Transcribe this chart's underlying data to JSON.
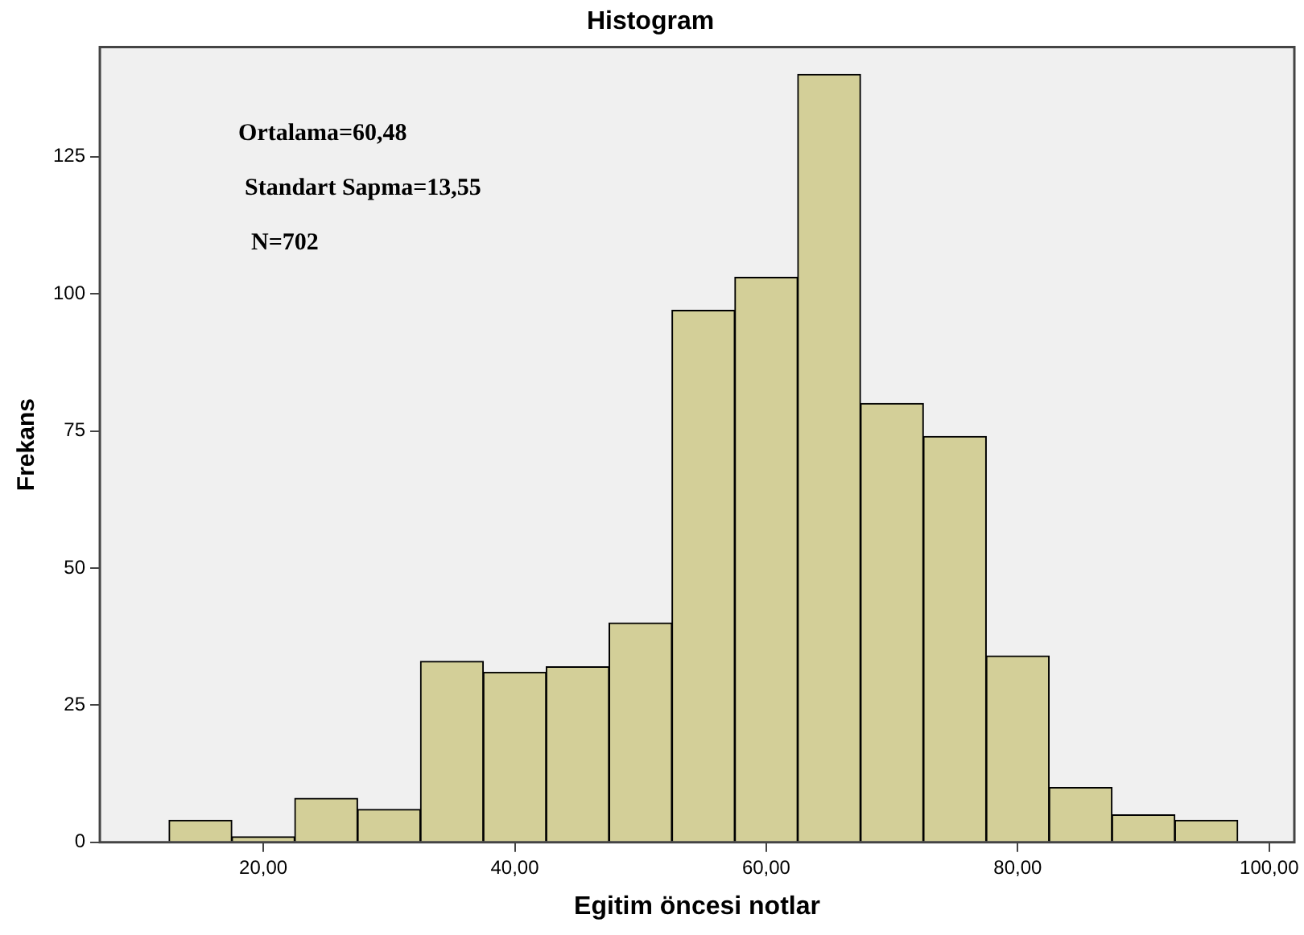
{
  "chart_data": {
    "type": "histogram",
    "title": "Histogram",
    "xlabel": "Egitim öncesi notlar",
    "ylabel": "Frekans",
    "bins": [
      12.5,
      17.5,
      22.5,
      27.5,
      32.5,
      37.5,
      42.5,
      47.5,
      52.5,
      57.5,
      62.5,
      67.5,
      72.5,
      77.5,
      82.5,
      87.5,
      92.5,
      97.5
    ],
    "values": [
      4,
      1,
      8,
      6,
      33,
      31,
      32,
      40,
      97,
      103,
      140,
      80,
      74,
      34,
      10,
      5,
      4
    ],
    "color": "#d3cf98",
    "xlim": [
      7,
      102
    ],
    "xticks": [
      {
        "value": 20,
        "label": "20,00"
      },
      {
        "value": 40,
        "label": "40,00"
      },
      {
        "value": 60,
        "label": "60,00"
      },
      {
        "value": 80,
        "label": "80,00"
      },
      {
        "value": 100,
        "label": "100,00"
      }
    ],
    "ylim": [
      0,
      145
    ],
    "yticks": [
      0,
      25,
      50,
      75,
      100,
      125
    ],
    "grid": false,
    "legend": false,
    "annotations": [
      "Ortalama=60,48",
      "Standart Sapma=13,55",
      "N=702"
    ]
  }
}
